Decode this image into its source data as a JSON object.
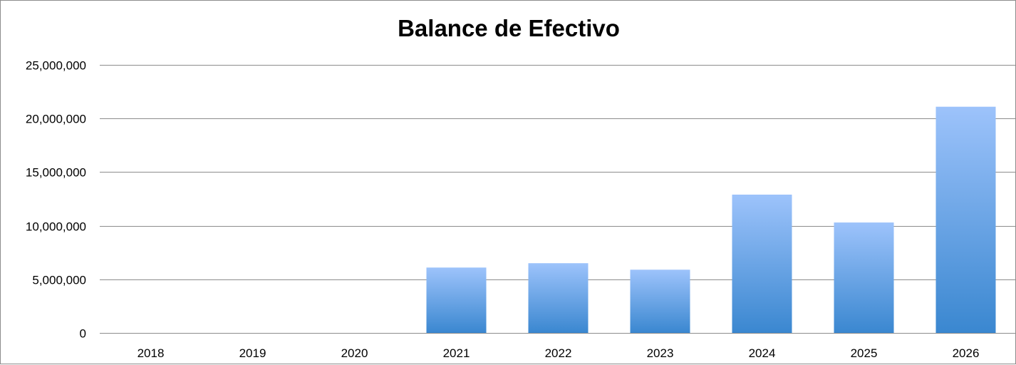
{
  "chart_data": {
    "type": "bar",
    "title": "Balance de Efectivo",
    "xlabel": "",
    "ylabel": "",
    "categories": [
      "2018",
      "2019",
      "2020",
      "2021",
      "2022",
      "2023",
      "2024",
      "2025",
      "2026"
    ],
    "values": [
      0,
      0,
      0,
      6100000,
      6500000,
      5900000,
      12900000,
      10300000,
      21100000
    ],
    "ylim": [
      0,
      25000000
    ],
    "yticks": [
      0,
      5000000,
      10000000,
      15000000,
      20000000,
      25000000
    ],
    "ytick_labels": [
      "0",
      "5,000,000",
      "10,000,000",
      "15,000,000",
      "20,000,000",
      "25,000,000"
    ],
    "grid": true,
    "legend": "none",
    "colors": {
      "bar_top": "#9dc3fb",
      "bar_bottom": "#3a87d0",
      "grid": "#8c8c8c",
      "frame": "#8c8c8c"
    }
  }
}
